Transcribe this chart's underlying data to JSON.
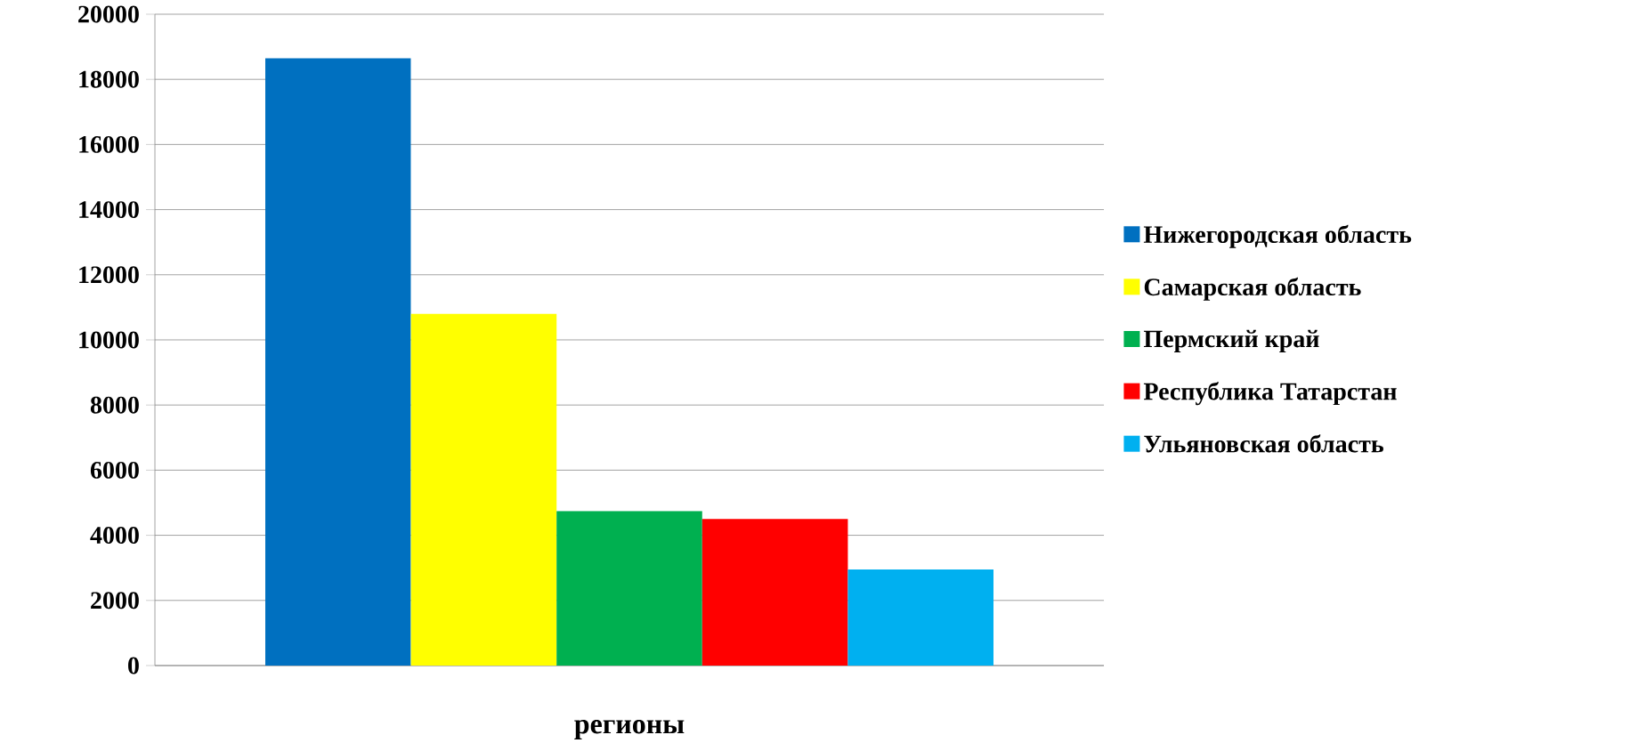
{
  "chart_data": {
    "type": "bar",
    "categories": [
      "регионы"
    ],
    "series": [
      {
        "name": "Нижегородская область",
        "color": "#0070c0",
        "values": [
          18650
        ]
      },
      {
        "name": "Самарская область",
        "color": "#ffff00",
        "values": [
          10800
        ]
      },
      {
        "name": "Пермский край",
        "color": "#00b050",
        "values": [
          4750
        ]
      },
      {
        "name": "Республика Татарстан",
        "color": "#ff0000",
        "values": [
          4500
        ]
      },
      {
        "name": "Ульяновская область",
        "color": "#00b0f0",
        "values": [
          2950
        ]
      }
    ],
    "ylim": [
      0,
      20000
    ],
    "yticks": [
      0,
      2000,
      4000,
      6000,
      8000,
      10000,
      12000,
      14000,
      16000,
      18000,
      20000
    ],
    "grid": "y",
    "legend": "right"
  }
}
